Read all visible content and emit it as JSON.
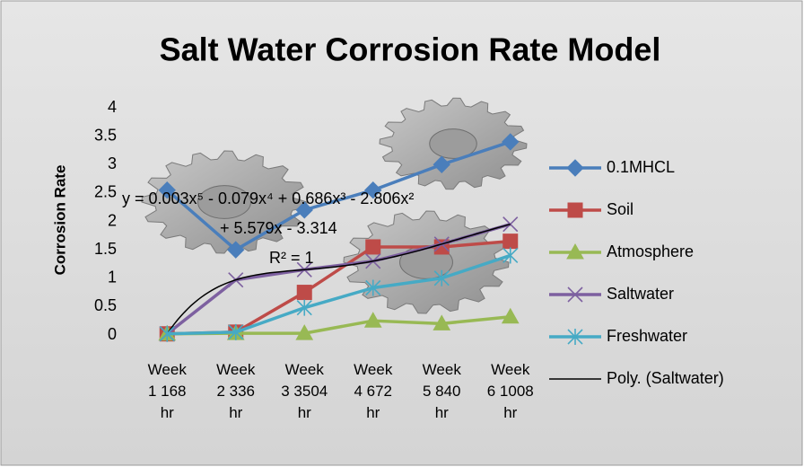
{
  "chart_data": {
    "type": "line",
    "title": "Salt Water Corrosion Rate Model",
    "y_label": "Corrosion Rate",
    "categories": [
      "Week 1 168 hr",
      "Week 2 336 hr",
      "Week 3 3504 hr",
      "Week 4 672 hr",
      "Week 5 840 hr",
      "Week 6 1008 hr"
    ],
    "ylim": [
      0,
      4
    ],
    "yticks": [
      0,
      0.5,
      1,
      1.5,
      2,
      2.5,
      3,
      3.5,
      4
    ],
    "grid": false,
    "legend": "right",
    "series": [
      {
        "name": "0.1MHCL",
        "color": "#4a7ebb",
        "marker": "diamond",
        "values": [
          2.55,
          1.5,
          2.2,
          2.55,
          3.0,
          3.4
        ]
      },
      {
        "name": "Soil",
        "color": "#be4b48",
        "marker": "square",
        "values": [
          0.02,
          0.05,
          0.75,
          1.55,
          1.55,
          1.65
        ]
      },
      {
        "name": "Atmosphere",
        "color": "#98b954",
        "marker": "triangle",
        "values": [
          0.02,
          0.03,
          0.03,
          0.25,
          0.2,
          0.32
        ]
      },
      {
        "name": "Saltwater",
        "color": "#7d60a0",
        "marker": "x",
        "values": [
          0.02,
          0.97,
          1.15,
          1.3,
          1.6,
          1.95
        ],
        "trendline": {
          "name": "Poly. (Saltwater)",
          "color": "#000000",
          "equation": [
            "y = 0.003x⁵ - 0.079x⁴ + 0.686x³ - 2.806x²",
            "+ 5.579x - 3.314"
          ],
          "r_squared": "R² = 1"
        }
      },
      {
        "name": "Freshwater",
        "color": "#46aac5",
        "marker": "star",
        "values": [
          0.02,
          0.05,
          0.48,
          0.83,
          1.0,
          1.4
        ]
      }
    ]
  }
}
